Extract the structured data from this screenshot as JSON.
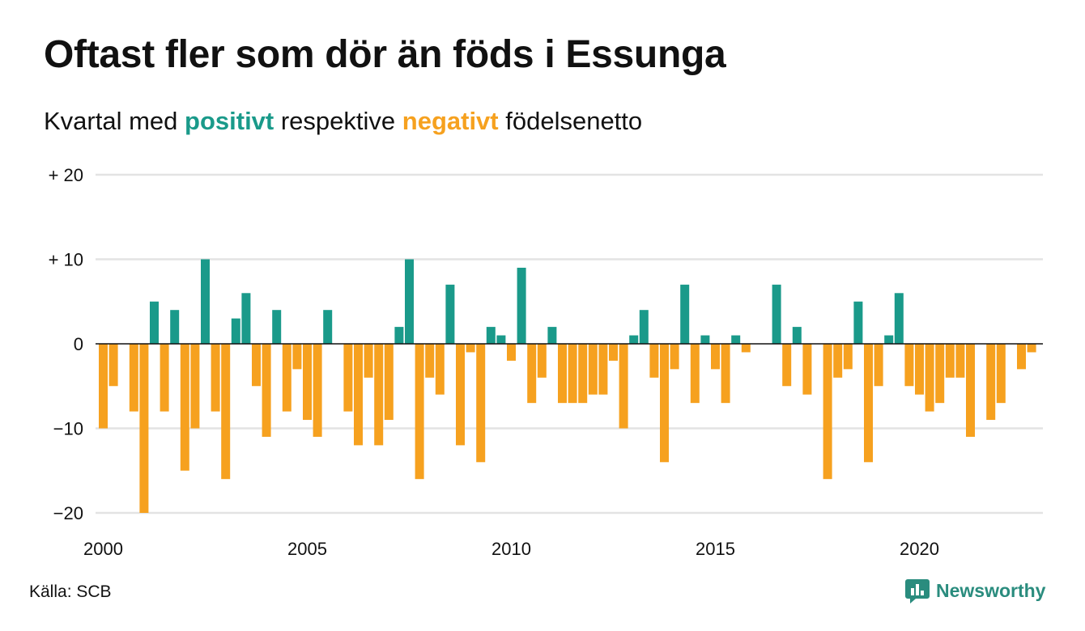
{
  "title": "Oftast fler som dör än föds i Essunga",
  "subtitle": {
    "prefix": "Kvartal med ",
    "positive": "positivt",
    "middle": " respektive ",
    "negative": "negativt",
    "suffix": " födelsenetto"
  },
  "source": "Källa: SCB",
  "brand": {
    "name": "Newsworthy",
    "icon": "newsworthy-logo-icon"
  },
  "colors": {
    "positive": "#1a9a8a",
    "negative": "#f6a11f",
    "grid": "#e3e3e3",
    "axis": "#111111"
  },
  "chart_data": {
    "type": "bar",
    "ylim": [
      -20,
      20
    ],
    "y_ticks": [
      20,
      10,
      0,
      -10,
      -20
    ],
    "y_tick_labels": [
      "+ 20",
      "+ 10",
      "0",
      "−10",
      "−20"
    ],
    "x_tick_labels": [
      "2000",
      "2005",
      "2010",
      "2015",
      "2020"
    ],
    "start": "2000 Q1",
    "grid": true,
    "values": [
      -10,
      -5,
      0,
      -8,
      -20,
      5,
      -8,
      4,
      -15,
      -10,
      10,
      -8,
      -16,
      3,
      6,
      -5,
      -11,
      4,
      -8,
      -3,
      -9,
      -11,
      4,
      0,
      -8,
      -12,
      -4,
      -12,
      -9,
      2,
      10,
      -16,
      -4,
      -6,
      7,
      -12,
      -1,
      -14,
      2,
      1,
      -2,
      9,
      -7,
      -4,
      2,
      -7,
      -7,
      -7,
      -6,
      -6,
      -2,
      -10,
      1,
      4,
      -4,
      -14,
      -3,
      7,
      -7,
      1,
      -3,
      -7,
      1,
      -1,
      0,
      0,
      7,
      -5,
      2,
      -6,
      0,
      -16,
      -4,
      -3,
      5,
      -14,
      -5,
      1,
      6,
      -5,
      -6,
      -8,
      -7,
      -4,
      -4,
      -11,
      0,
      -9,
      -7,
      0,
      -3,
      -1
    ]
  }
}
